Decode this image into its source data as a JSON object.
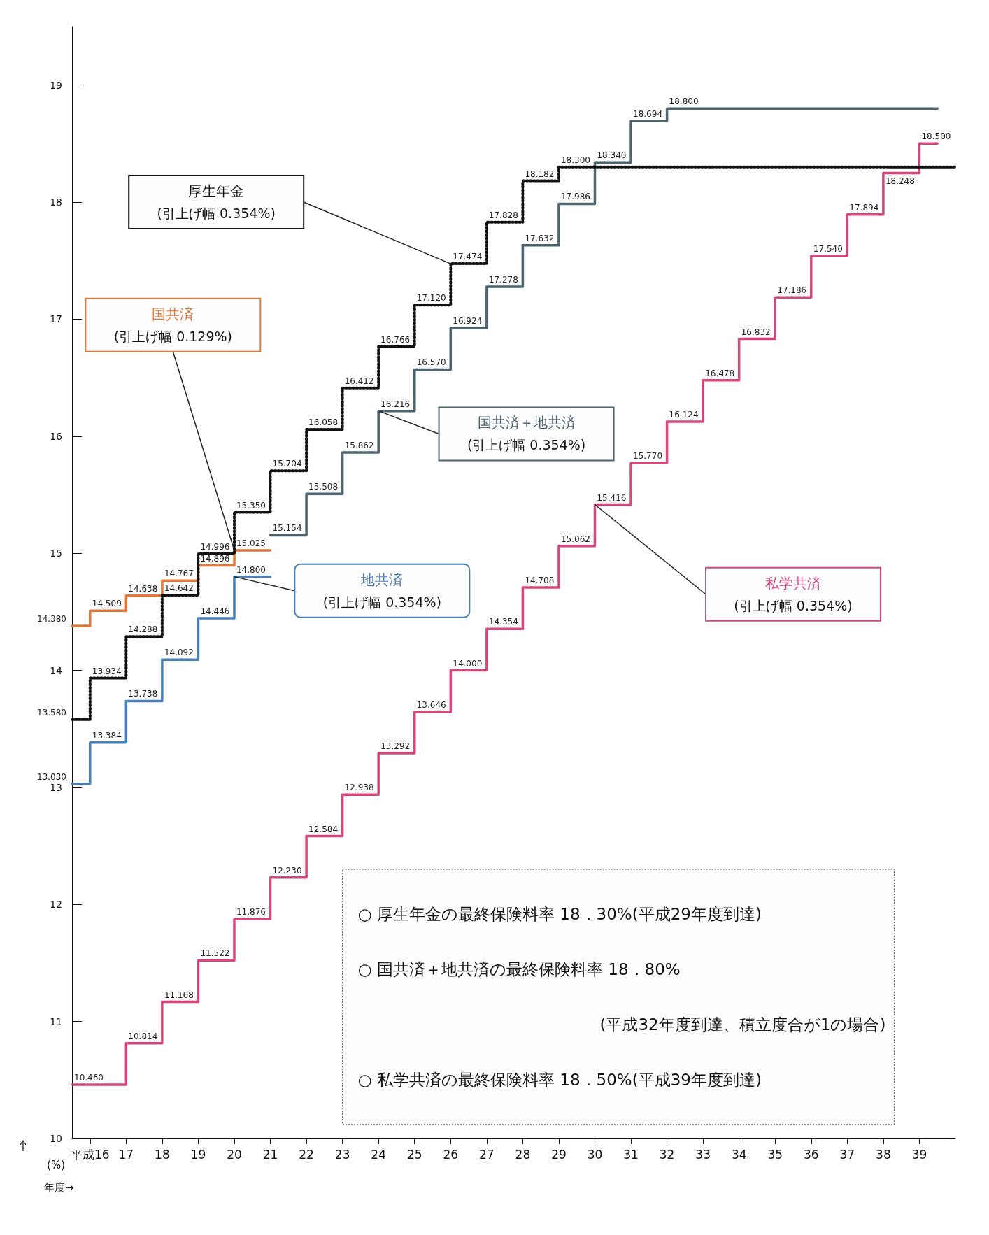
{
  "chart_data": {
    "type": "step",
    "ylabel": "(%)",
    "xlabel": "年度→",
    "xlim": [
      16,
      40.5
    ],
    "ylim": [
      10,
      19.5
    ],
    "yticks": [
      10,
      11,
      12,
      13,
      14,
      15,
      16,
      17,
      18,
      19
    ],
    "xticks": [
      {
        "value": 16.5,
        "label": "平成16"
      },
      {
        "value": 17.5,
        "label": "17"
      },
      {
        "value": 18.5,
        "label": "18"
      },
      {
        "value": 19.5,
        "label": "19"
      },
      {
        "value": 20.5,
        "label": "20"
      },
      {
        "value": 21.5,
        "label": "21"
      },
      {
        "value": 22.5,
        "label": "22"
      },
      {
        "value": 23.5,
        "label": "23"
      },
      {
        "value": 24.5,
        "label": "24"
      },
      {
        "value": 25.5,
        "label": "25"
      },
      {
        "value": 26.5,
        "label": "26"
      },
      {
        "value": 27.5,
        "label": "27"
      },
      {
        "value": 28.5,
        "label": "28"
      },
      {
        "value": 29.5,
        "label": "29"
      },
      {
        "value": 30.5,
        "label": "30"
      },
      {
        "value": 31.5,
        "label": "31"
      },
      {
        "value": 32.5,
        "label": "32"
      },
      {
        "value": 33.5,
        "label": "33"
      },
      {
        "value": 34.5,
        "label": "34"
      },
      {
        "value": 35.5,
        "label": "35"
      },
      {
        "value": 36.5,
        "label": "36"
      },
      {
        "value": 37.5,
        "label": "37"
      },
      {
        "value": 38.5,
        "label": "38"
      },
      {
        "value": 39.5,
        "label": "39"
      }
    ],
    "grid": false,
    "legend": false,
    "marker": "none",
    "line_style": "solid",
    "series": [
      {
        "name": "厚生年金",
        "color": "#111111",
        "line_style": "dotted",
        "x": [
          16,
          16.5,
          17.5,
          18.5,
          19.5,
          20.5,
          21.5,
          22.5,
          23.5,
          24.5,
          25.5,
          26.5,
          27.5,
          28.5,
          29.5,
          40.5
        ],
        "values": [
          13.58,
          13.934,
          14.288,
          14.642,
          14.996,
          15.35,
          15.704,
          16.058,
          16.412,
          16.766,
          17.12,
          17.474,
          17.828,
          18.182,
          18.3,
          18.3
        ],
        "value_labels": [
          "13.580",
          "13.934",
          "14.288",
          "14.642",
          "14.996",
          "15.350",
          "15.704",
          "16.058",
          "16.412",
          "16.766",
          "17.120",
          "17.474",
          "17.828",
          "18.182",
          "18.300",
          null
        ]
      },
      {
        "name": "国共済",
        "color": "#e0783a",
        "x": [
          16,
          16.5,
          17.5,
          18.5,
          19.5,
          20.5,
          21.5
        ],
        "values": [
          14.38,
          14.509,
          14.638,
          14.767,
          14.896,
          15.025,
          15.025
        ],
        "value_labels": [
          "14.380",
          "14.509",
          "14.638",
          "14.767",
          "14.896",
          "15.025",
          null
        ]
      },
      {
        "name": "地共済",
        "color": "#4a7fb8",
        "x": [
          16,
          16.5,
          17.5,
          18.5,
          19.5,
          20.5,
          21.5
        ],
        "values": [
          13.03,
          13.384,
          13.738,
          14.092,
          14.446,
          14.8,
          14.8
        ],
        "value_labels": [
          "13.030",
          "13.384",
          "13.738",
          "14.092",
          "14.446",
          "14.800",
          null
        ]
      },
      {
        "name": "国共済＋地共済",
        "color": "#4b6470",
        "x": [
          21.5,
          22.5,
          23.5,
          24.5,
          25.5,
          26.5,
          27.5,
          28.5,
          29.5,
          30.5,
          31.5,
          32.5,
          40
        ],
        "values": [
          15.154,
          15.508,
          15.862,
          16.216,
          16.57,
          16.924,
          17.278,
          17.632,
          17.986,
          18.34,
          18.694,
          18.8,
          18.8
        ],
        "value_labels": [
          "15.154",
          "15.508",
          "15.862",
          "16.216",
          "16.570",
          "16.924",
          "17.278",
          "17.632",
          "17.986",
          "18.340",
          "18.694",
          "18.800",
          null
        ]
      },
      {
        "name": "私学共済",
        "color": "#d8457c",
        "x": [
          16,
          17.5,
          18.5,
          19.5,
          20.5,
          21.5,
          22.5,
          23.5,
          24.5,
          25.5,
          26.5,
          27.5,
          28.5,
          29.5,
          30.5,
          31.5,
          32.5,
          33.5,
          34.5,
          35.5,
          36.5,
          37.5,
          38.5,
          39.5,
          40
        ],
        "values": [
          10.46,
          10.814,
          11.168,
          11.522,
          11.876,
          12.23,
          12.584,
          12.938,
          13.292,
          13.646,
          14.0,
          14.354,
          14.708,
          15.062,
          15.416,
          15.77,
          16.124,
          16.478,
          16.832,
          17.186,
          17.54,
          17.894,
          18.248,
          18.5,
          18.5
        ],
        "value_labels": [
          "10.460",
          "10.814",
          "11.168",
          "11.522",
          "11.876",
          "12.230",
          "12.584",
          "12.938",
          "13.292",
          "13.646",
          "14.000",
          "14.354",
          "14.708",
          "15.062",
          "15.416",
          "15.770",
          "16.124",
          "16.478",
          "16.832",
          "17.186",
          "17.540",
          "17.894",
          "18.248",
          "18.500",
          null
        ]
      }
    ],
    "annotations": [
      "(引上げ幅 0.354%)",
      {
        "text": "(引上げ幅 0.129%)",
        "x": 20.5,
        "y": 15.025
      },
      "(引上げ幅 0.354%)",
      "(引上げ幅 0.354%)",
      "(引上げ幅 0.354%)",
      "○ 厚生年金の最終保険料率 18．30%(平成29年度到達)",
      "○ 国共済＋地共済の最終保険料率 18．80%",
      "(平成32年度到達、積立度合が1の場合)",
      "○ 私学共済の最終保険料率 18．50%(平成39年度到達)"
    ]
  }
}
